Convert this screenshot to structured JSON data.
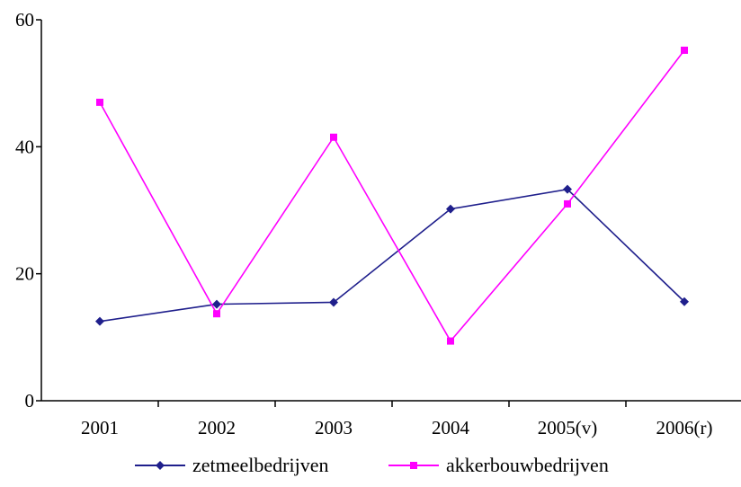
{
  "chart_data": {
    "type": "line",
    "categories": [
      "2001",
      "2002",
      "2003",
      "2004",
      "2005(v)",
      "2006(r)"
    ],
    "series": [
      {
        "name": "zetmeelbedrijven",
        "values": [
          12.5,
          15.2,
          15.5,
          30.2,
          33.3,
          15.6
        ],
        "color": "#1f1f8c",
        "marker": "diamond"
      },
      {
        "name": "akkerbouwbedrijven",
        "values": [
          47.0,
          13.7,
          41.5,
          9.4,
          31.0,
          55.2
        ],
        "color": "#ff00ff",
        "marker": "square"
      }
    ],
    "yticks": [
      0,
      20,
      40,
      60
    ],
    "ylim": [
      0,
      60
    ],
    "grid": false,
    "legend_position": "bottom",
    "title": "",
    "xlabel": "",
    "ylabel": ""
  }
}
